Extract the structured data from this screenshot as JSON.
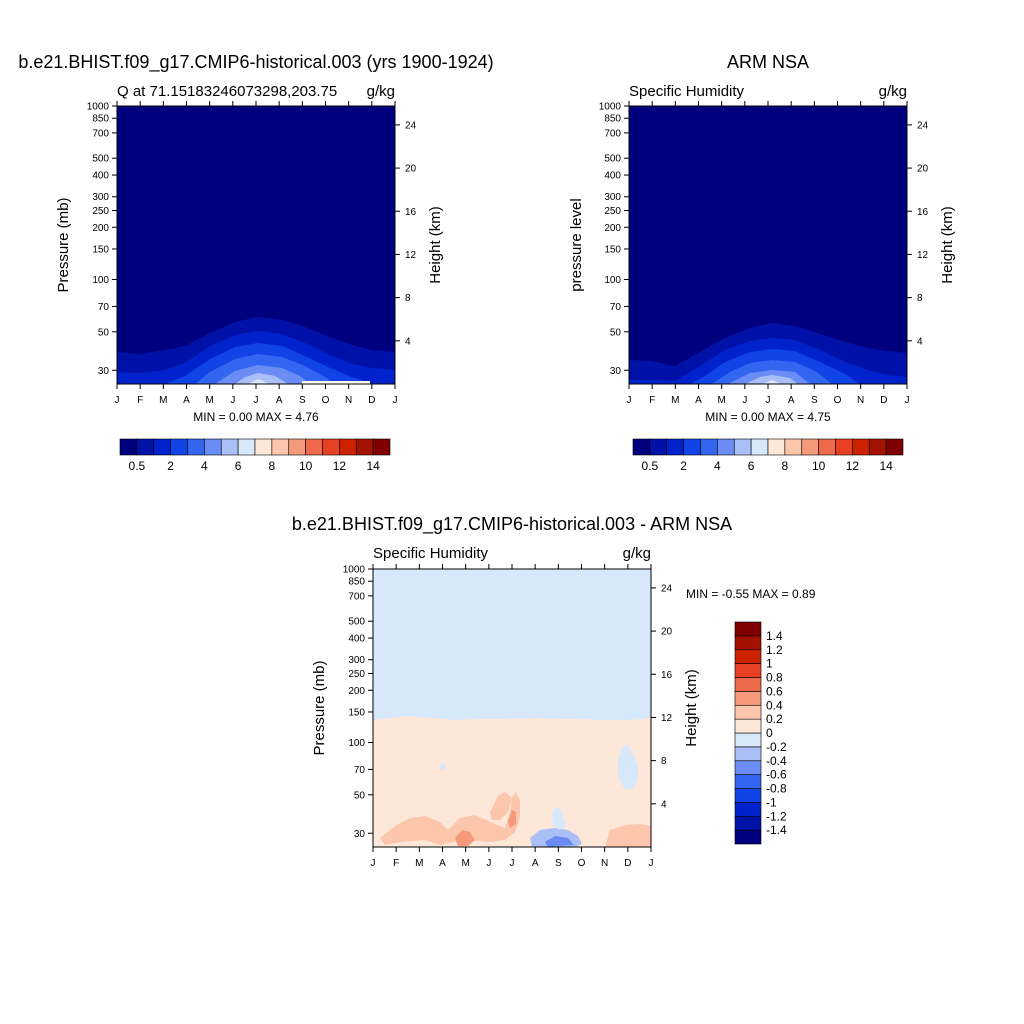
{
  "figure": {
    "panels": [
      {
        "id": "model",
        "title": "b.e21.BHIST.f09_g17.CMIP6-historical.003 (yrs 1900-1924)",
        "left_label": "Q at 71.15183246073298,203.75",
        "right_label": "g/kg",
        "ylabel": "Pressure (mb)",
        "y2label": "Height (km)",
        "stats": "MIN =   0.00 MAX =   4.76"
      },
      {
        "id": "obs",
        "title": "ARM NSA",
        "left_label": "Specific Humidity",
        "right_label": "g/kg",
        "ylabel": "pressure level",
        "y2label": "Height (km)",
        "stats": "MIN =   0.00 MAX =   4.75"
      },
      {
        "id": "diff",
        "title": "b.e21.BHIST.f09_g17.CMIP6-historical.003 - ARM NSA",
        "left_label": "Specific Humidity",
        "right_label": "g/kg",
        "ylabel": "Pressure (mb)",
        "y2label": "Height (km)",
        "stats": "MIN =  -0.55 MAX =   0.89"
      }
    ],
    "colorbar_top": {
      "orientation": "horizontal",
      "colors": [
        "#00007f",
        "#0011a8",
        "#0022cc",
        "#1144e6",
        "#3366f0",
        "#6a8cf4",
        "#aabff6",
        "#d8e8fb",
        "#fde7d8",
        "#fbc6ab",
        "#f49a7a",
        "#ee6a4a",
        "#e84022",
        "#cc2200",
        "#a31100",
        "#7f0000"
      ],
      "tick_labels": [
        "0.5",
        "2",
        "4",
        "6",
        "8",
        "10",
        "12",
        "14"
      ]
    },
    "colorbar_diff": {
      "orientation": "vertical",
      "colors": [
        "#00007f",
        "#0011a8",
        "#0022cc",
        "#1144e6",
        "#3366f0",
        "#6a8cf4",
        "#aabff6",
        "#d8e8fb",
        "#fde7d8",
        "#fbc6ab",
        "#f49a7a",
        "#ee6a4a",
        "#e84022",
        "#cc2200",
        "#a31100",
        "#7f0000"
      ],
      "tick_labels": [
        "-1.4",
        "-1.2",
        "-1",
        "-0.8",
        "-0.6",
        "-0.4",
        "-0.2",
        "0",
        "0.2",
        "0.4",
        "0.6",
        "0.8",
        "1",
        "1.2",
        "1.4"
      ]
    }
  },
  "chart_data": [
    {
      "type": "heatmap",
      "title": "b.e21.BHIST.f09_g17.CMIP6-historical.003 (yrs 1900-1924)",
      "x_ticks": [
        "J",
        "F",
        "M",
        "A",
        "M",
        "J",
        "J",
        "A",
        "S",
        "O",
        "N",
        "D",
        "J"
      ],
      "y_ticks": [
        30,
        50,
        70,
        100,
        150,
        200,
        250,
        300,
        400,
        500,
        700,
        850,
        1000
      ],
      "y_scale": "log",
      "y_reversed": true,
      "ylim": [
        1000,
        25
      ],
      "y2_ticks": [
        4,
        8,
        12,
        16,
        20,
        24
      ],
      "y2label": "Height (km)",
      "fill_levels_g_per_kg": [
        0.5,
        1.0,
        1.5,
        2.0,
        2.5,
        3.0,
        3.5,
        4.0
      ],
      "monthly_surface_max_g_per_kg": [
        0.6,
        0.6,
        0.8,
        1.2,
        2.2,
        3.5,
        4.7,
        4.3,
        2.8,
        1.5,
        0.9,
        0.7
      ],
      "min": 0.0,
      "max": 4.76,
      "units": "g/kg"
    },
    {
      "type": "heatmap",
      "title": "ARM NSA",
      "x_ticks": [
        "J",
        "F",
        "M",
        "A",
        "M",
        "J",
        "J",
        "A",
        "S",
        "O",
        "N",
        "D",
        "J"
      ],
      "y_ticks": [
        30,
        50,
        70,
        100,
        150,
        200,
        250,
        300,
        400,
        500,
        700,
        850,
        1000
      ],
      "y_scale": "log",
      "y_reversed": true,
      "ylim": [
        1000,
        25
      ],
      "y2_ticks": [
        4,
        8,
        12,
        16,
        20,
        24
      ],
      "y2label": "Height (km)",
      "fill_levels_g_per_kg": [
        0.5,
        1.0,
        1.5,
        2.0,
        2.5,
        3.0,
        3.5,
        4.0
      ],
      "monthly_surface_max_g_per_kg": [
        0.6,
        0.6,
        0.7,
        1.1,
        2.0,
        3.4,
        4.7,
        4.4,
        2.9,
        1.6,
        1.0,
        0.7
      ],
      "min": 0.0,
      "max": 4.75,
      "units": "g/kg"
    },
    {
      "type": "heatmap",
      "title": "b.e21.BHIST.f09_g17.CMIP6-historical.003 - ARM NSA",
      "x_ticks": [
        "J",
        "F",
        "M",
        "A",
        "M",
        "J",
        "J",
        "A",
        "S",
        "O",
        "N",
        "D",
        "J"
      ],
      "y_ticks": [
        30,
        50,
        70,
        100,
        150,
        200,
        250,
        300,
        400,
        500,
        700,
        850,
        1000
      ],
      "y_scale": "log",
      "y_reversed": true,
      "ylim": [
        1000,
        25
      ],
      "y2_ticks": [
        4,
        8,
        12,
        16,
        20,
        24
      ],
      "y2label": "Height (km)",
      "upper_region_value_g_per_kg": "-0.2 to 0",
      "lower_region_value_g_per_kg": "0 to 0.2",
      "boundary_pressure_mb": 190,
      "min": -0.55,
      "max": 0.89,
      "units": "g/kg"
    }
  ]
}
